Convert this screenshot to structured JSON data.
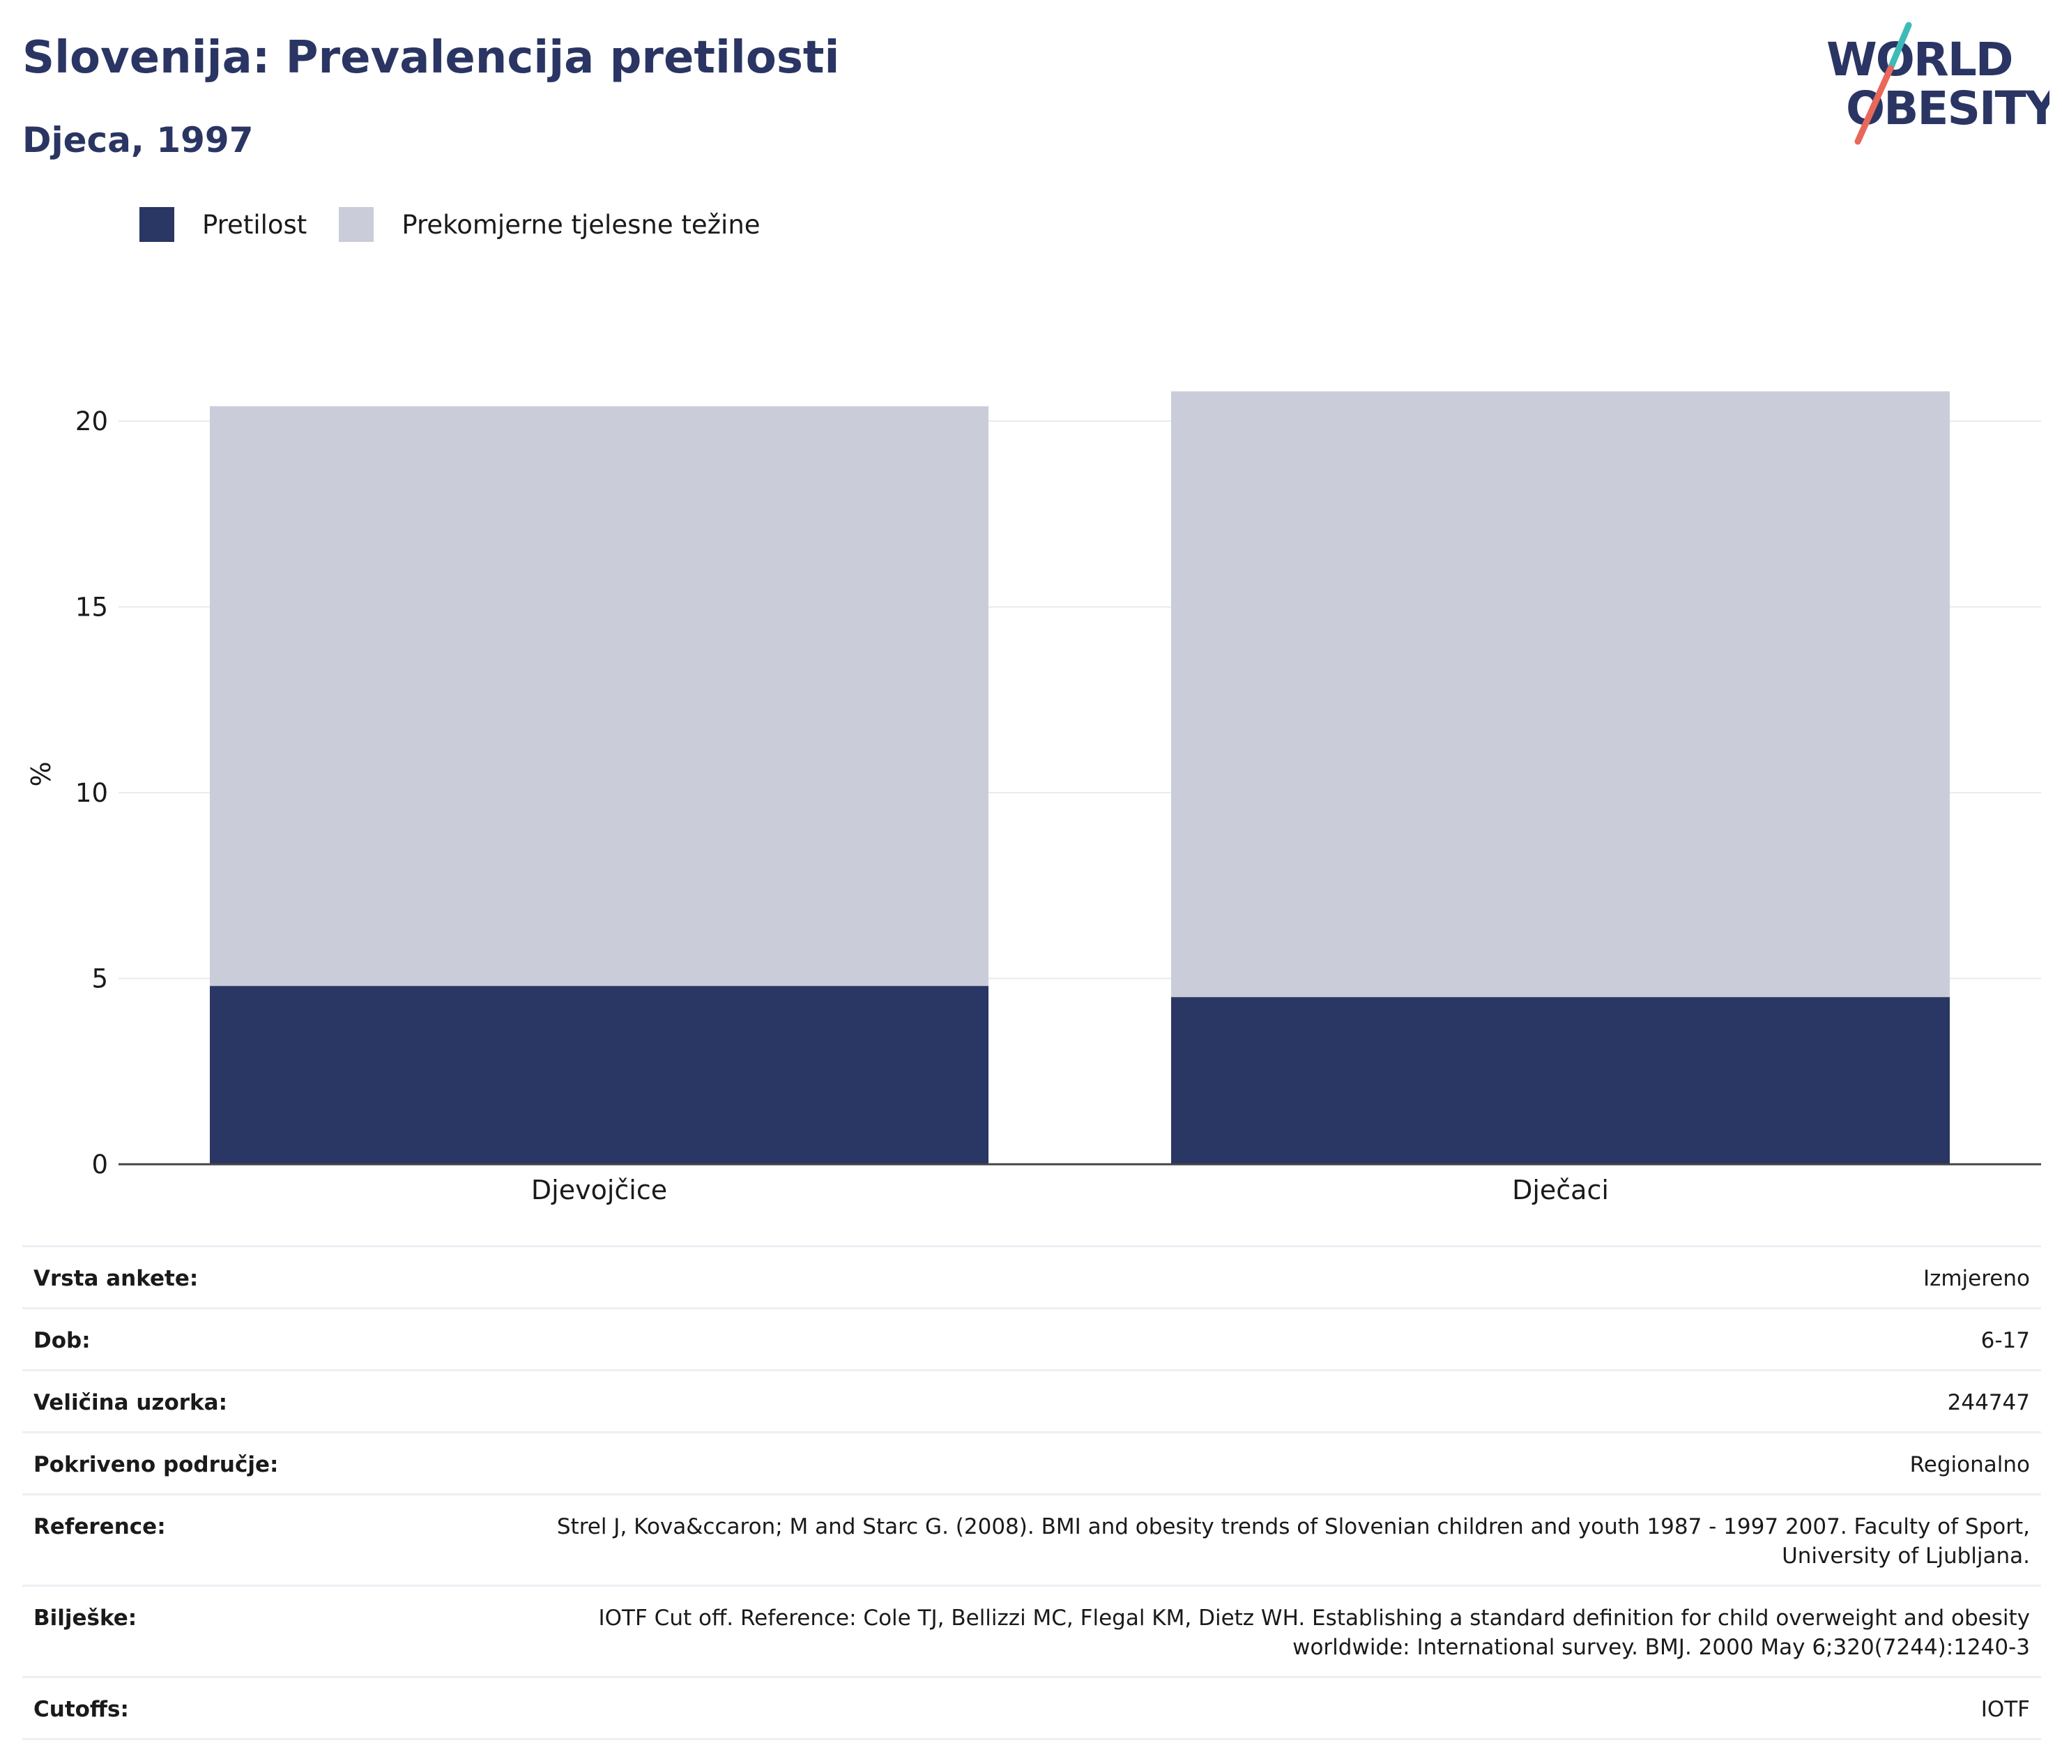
{
  "title": "Slovenija: Prevalencija pretilosti",
  "subtitle": "Djeca, 1997",
  "logo": {
    "line1": "WORLD",
    "line2": "OBESITY",
    "accent_teal": "#3dbbb8",
    "accent_coral": "#e8685a",
    "color": "#2a3563"
  },
  "legend": [
    {
      "label": "Pretilost",
      "color": "#2a3663"
    },
    {
      "label": "Prekomjerne tjelesne težine",
      "color": "#cacdd9"
    }
  ],
  "chart_data": {
    "type": "bar",
    "stacked": true,
    "categories": [
      "Djevojčice",
      "Dječaci"
    ],
    "series": [
      {
        "name": "Pretilost",
        "values": [
          4.8,
          4.5
        ],
        "color": "#2a3663"
      },
      {
        "name": "Prekomjerne tjelesne težine",
        "values": [
          15.6,
          16.3
        ],
        "color": "#cacdd9"
      }
    ],
    "ylabel": "%",
    "ylim": [
      0,
      21.5
    ],
    "yticks": [
      0,
      5,
      10,
      15,
      20
    ],
    "grid": true,
    "legend_position": "top-left"
  },
  "info": [
    {
      "key": "Vrsta ankete:",
      "value": "Izmjereno"
    },
    {
      "key": "Dob:",
      "value": "6-17"
    },
    {
      "key": "Veličina uzorka:",
      "value": "244747"
    },
    {
      "key": "Pokriveno područje:",
      "value": "Regionalno"
    },
    {
      "key": "Reference:",
      "value": "Strel J, Kova&ccaron; M and Starc G. (2008). BMI and obesity trends of Slovenian children and youth 1987 - 1997 2007. Faculty of Sport, University of Ljubljana."
    },
    {
      "key": "Bilješke:",
      "value": "IOTF Cut off. Reference: Cole TJ, Bellizzi MC, Flegal KM, Dietz WH. Establishing a standard definition for child overweight and obesity worldwide: International survey. BMJ. 2000 May 6;320(7244):1240-3"
    },
    {
      "key": "Cutoffs:",
      "value": "IOTF"
    }
  ]
}
